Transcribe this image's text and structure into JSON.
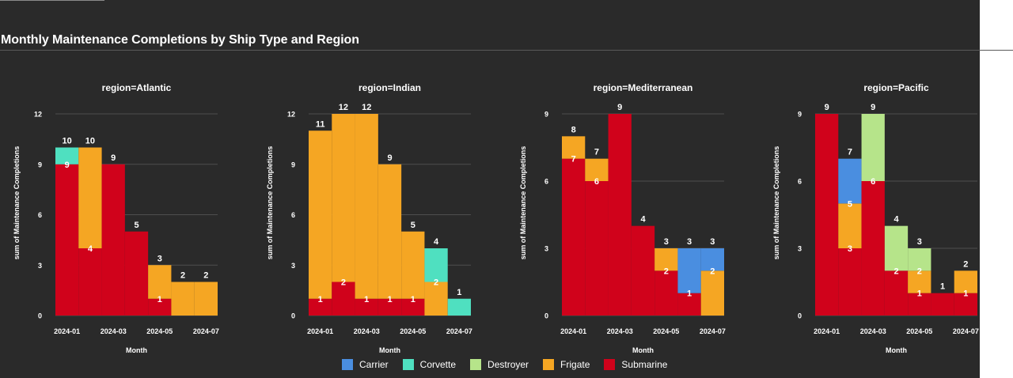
{
  "title": "Monthly Maintenance Completions by Ship Type and Region",
  "chart_data": {
    "type": "bar",
    "stacked": true,
    "x_label": "Month",
    "y_label": "sum of Maintenance Completions",
    "months": [
      "2024-01",
      "2024-02",
      "2024-03",
      "2024-04",
      "2024-05",
      "2024-06",
      "2024-07"
    ],
    "x_tick_labels": [
      "2024-01",
      "2024-03",
      "2024-05",
      "2024-07"
    ],
    "series_colors": {
      "Carrier": "#4a8ee0",
      "Corvette": "#4fe0c0",
      "Destroyer": "#b6e48a",
      "Frigate": "#f5a623",
      "Submarine": "#d0021b"
    },
    "legend": [
      "Carrier",
      "Corvette",
      "Destroyer",
      "Frigate",
      "Submarine"
    ],
    "grid": true,
    "panels": [
      {
        "title": "region=Atlantic",
        "ylim": [
          0,
          12
        ],
        "y_ticks": [
          0,
          3,
          6,
          9,
          12
        ],
        "bars": [
          {
            "month": "2024-01",
            "segments": [
              {
                "series": "Submarine",
                "value": 9
              },
              {
                "series": "Corvette",
                "value": 1
              }
            ],
            "total": 10
          },
          {
            "month": "2024-02",
            "segments": [
              {
                "series": "Submarine",
                "value": 4
              },
              {
                "series": "Frigate",
                "value": 6
              }
            ],
            "total": 10
          },
          {
            "month": "2024-03",
            "segments": [
              {
                "series": "Submarine",
                "value": 9
              }
            ],
            "total": 9
          },
          {
            "month": "2024-04",
            "segments": [
              {
                "series": "Submarine",
                "value": 5
              }
            ],
            "total": 5
          },
          {
            "month": "2024-05",
            "segments": [
              {
                "series": "Submarine",
                "value": 1
              },
              {
                "series": "Frigate",
                "value": 2
              }
            ],
            "total": 3
          },
          {
            "month": "2024-06",
            "segments": [
              {
                "series": "Frigate",
                "value": 2
              }
            ],
            "total": 2
          },
          {
            "month": "2024-07",
            "segments": [
              {
                "series": "Frigate",
                "value": 2
              }
            ],
            "total": 2
          }
        ]
      },
      {
        "title": "region=Indian",
        "ylim": [
          0,
          12
        ],
        "y_ticks": [
          0,
          3,
          6,
          9,
          12
        ],
        "bars": [
          {
            "month": "2024-01",
            "segments": [
              {
                "series": "Submarine",
                "value": 1
              },
              {
                "series": "Frigate",
                "value": 10
              }
            ],
            "total": 11
          },
          {
            "month": "2024-02",
            "segments": [
              {
                "series": "Submarine",
                "value": 2
              },
              {
                "series": "Frigate",
                "value": 10
              }
            ],
            "total": 12
          },
          {
            "month": "2024-03",
            "segments": [
              {
                "series": "Submarine",
                "value": 1
              },
              {
                "series": "Frigate",
                "value": 11
              }
            ],
            "total": 12
          },
          {
            "month": "2024-04",
            "segments": [
              {
                "series": "Submarine",
                "value": 1
              },
              {
                "series": "Frigate",
                "value": 8
              }
            ],
            "total": 9
          },
          {
            "month": "2024-05",
            "segments": [
              {
                "series": "Submarine",
                "value": 1
              },
              {
                "series": "Frigate",
                "value": 4
              }
            ],
            "total": 5
          },
          {
            "month": "2024-06",
            "segments": [
              {
                "series": "Frigate",
                "value": 2
              },
              {
                "series": "Corvette",
                "value": 2
              }
            ],
            "total": 4
          },
          {
            "month": "2024-07",
            "segments": [
              {
                "series": "Corvette",
                "value": 1
              }
            ],
            "total": 1
          }
        ]
      },
      {
        "title": "region=Mediterranean",
        "ylim": [
          0,
          9
        ],
        "y_ticks": [
          0,
          3,
          6,
          9
        ],
        "bars": [
          {
            "month": "2024-01",
            "segments": [
              {
                "series": "Submarine",
                "value": 7
              },
              {
                "series": "Frigate",
                "value": 1
              }
            ],
            "total": 8
          },
          {
            "month": "2024-02",
            "segments": [
              {
                "series": "Submarine",
                "value": 6
              },
              {
                "series": "Frigate",
                "value": 1
              }
            ],
            "total": 7
          },
          {
            "month": "2024-03",
            "segments": [
              {
                "series": "Submarine",
                "value": 9
              }
            ],
            "total": 9
          },
          {
            "month": "2024-04",
            "segments": [
              {
                "series": "Submarine",
                "value": 4
              }
            ],
            "total": 4
          },
          {
            "month": "2024-05",
            "segments": [
              {
                "series": "Submarine",
                "value": 2
              },
              {
                "series": "Frigate",
                "value": 1
              }
            ],
            "total": 3
          },
          {
            "month": "2024-06",
            "segments": [
              {
                "series": "Submarine",
                "value": 1
              },
              {
                "series": "Carrier",
                "value": 2
              }
            ],
            "total": 3
          },
          {
            "month": "2024-07",
            "segments": [
              {
                "series": "Frigate",
                "value": 2
              },
              {
                "series": "Carrier",
                "value": 1
              }
            ],
            "total": 3
          }
        ]
      },
      {
        "title": "region=Pacific",
        "ylim": [
          0,
          9
        ],
        "y_ticks": [
          0,
          3,
          6,
          9
        ],
        "bars": [
          {
            "month": "2024-01",
            "segments": [
              {
                "series": "Submarine",
                "value": 9
              }
            ],
            "total": 9
          },
          {
            "month": "2024-02",
            "segments": [
              {
                "series": "Submarine",
                "value": 3
              },
              {
                "series": "Frigate",
                "value": 2
              },
              {
                "series": "Carrier",
                "value": 2
              }
            ],
            "total": 7
          },
          {
            "month": "2024-03",
            "segments": [
              {
                "series": "Submarine",
                "value": 6
              },
              {
                "series": "Destroyer",
                "value": 3
              }
            ],
            "total": 9
          },
          {
            "month": "2024-04",
            "segments": [
              {
                "series": "Submarine",
                "value": 2
              },
              {
                "series": "Destroyer",
                "value": 2
              }
            ],
            "total": 4
          },
          {
            "month": "2024-05",
            "segments": [
              {
                "series": "Submarine",
                "value": 1
              },
              {
                "series": "Frigate",
                "value": 1
              },
              {
                "series": "Destroyer",
                "value": 1
              }
            ],
            "total": 3
          },
          {
            "month": "2024-06",
            "segments": [
              {
                "series": "Submarine",
                "value": 1
              }
            ],
            "total": 1
          },
          {
            "month": "2024-07",
            "segments": [
              {
                "series": "Submarine",
                "value": 1
              },
              {
                "series": "Frigate",
                "value": 1
              }
            ],
            "total": 2
          }
        ]
      }
    ]
  }
}
